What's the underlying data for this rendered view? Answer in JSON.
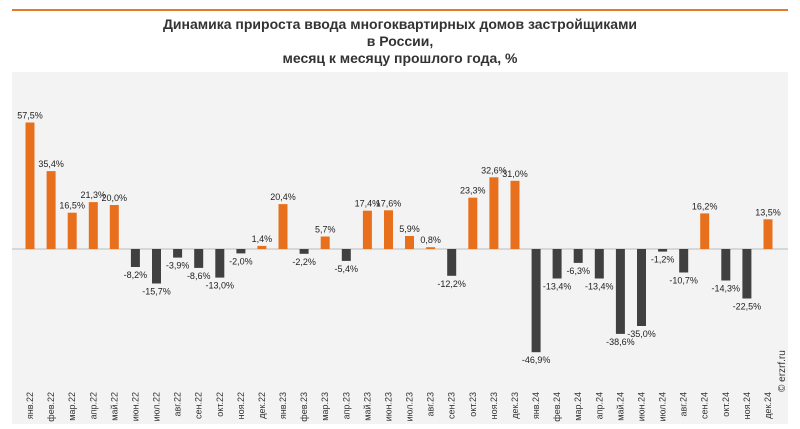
{
  "header": {
    "title_line1": "Динамика прироста ввода многоквартирных домов застройщиками",
    "title_line2": "в России,",
    "title_line3": "месяц к месяцу прошлого года, %"
  },
  "watermark": "© erzrf.ru",
  "colors": {
    "positive": "#e8701c",
    "negative": "#404040",
    "accent_line": "#e8782a"
  },
  "chart_data": {
    "type": "bar",
    "title": "Динамика прироста ввода многоквартирных домов застройщиками в России, месяц к месяцу прошлого года, %",
    "xlabel": "",
    "ylabel": "",
    "categories": [
      "янв.22",
      "фев.22",
      "мар.22",
      "апр.22",
      "май.22",
      "июн.22",
      "июл.22",
      "авг.22",
      "сен.22",
      "окт.22",
      "ноя.22",
      "дек.22",
      "янв.23",
      "фев.23",
      "мар.23",
      "апр.23",
      "май.23",
      "июн.23",
      "июл.23",
      "авг.23",
      "сен.23",
      "окт.23",
      "ноя.23",
      "дек.23",
      "янв.24",
      "фев.24",
      "мар.24",
      "апр.24",
      "май.24",
      "июн.24",
      "июл.24",
      "авг.24",
      "сен.24",
      "окт.24",
      "ноя.24",
      "дек.24"
    ],
    "values": [
      57.5,
      35.4,
      16.5,
      21.3,
      20.0,
      -8.2,
      -15.7,
      -3.9,
      -8.6,
      -13.0,
      -2.0,
      1.4,
      20.4,
      -2.2,
      5.7,
      -5.4,
      17.4,
      17.6,
      5.9,
      0.8,
      -12.2,
      23.3,
      32.6,
      31.0,
      -46.9,
      -13.4,
      -6.3,
      -13.4,
      -38.6,
      -35.0,
      -1.2,
      -10.7,
      16.2,
      -14.3,
      -22.5,
      13.5
    ],
    "labels": [
      "57,5%",
      "35,4%",
      "16,5%",
      "21,3%",
      "20,0%",
      "-8,2%",
      "-15,7%",
      "-3,9%",
      "-8,6%",
      "-13,0%",
      "-2,0%",
      "1,4%",
      "20,4%",
      "-2,2%",
      "5,7%",
      "-5,4%",
      "17,4%",
      "17,6%",
      "5,9%",
      "0,8%",
      "-12,2%",
      "23,3%",
      "32,6%",
      "31,0%",
      "-46,9%",
      "-13,4%",
      "-6,3%",
      "-13,4%",
      "-38,6%",
      "-35,0%",
      "-1,2%",
      "-10,7%",
      "16,2%",
      "-14,3%",
      "-22,5%",
      "13,5%"
    ],
    "ylim": [
      -50,
      60
    ],
    "grid": false,
    "legend": "none"
  }
}
